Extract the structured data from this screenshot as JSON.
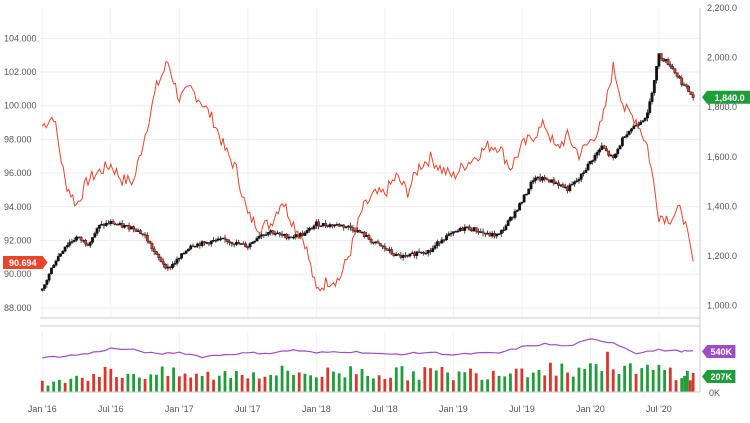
{
  "chart_data": [
    {
      "type": "line",
      "title": "",
      "xlabel": "",
      "x_tick_labels": [
        "Jan '16",
        "Jul '16",
        "Jan '17",
        "Jul '17",
        "Jan '18",
        "Jul '18",
        "Jan '19",
        "Jul '19",
        "Jan '20",
        "Jul '20"
      ],
      "left_axis": {
        "ylabel": "",
        "tick_labels": [
          "88.000",
          "90.000",
          "92.000",
          "94.000",
          "96.000",
          "98.000",
          "100.000",
          "102.000",
          "104.000"
        ],
        "ylim": [
          87.4,
          105.8
        ],
        "last_value_label": "90.694",
        "last_value": 90.694,
        "last_value_color": "#e8452c"
      },
      "right_axis": {
        "ylabel": "",
        "tick_labels": [
          "1,000.0",
          "1,200.0",
          "1,400.0",
          "1,600.0",
          "1,800.0",
          "2,000.0",
          "2,200.0"
        ],
        "ylim": [
          950,
          2200
        ],
        "last_value_label": "1,840.0",
        "last_value": 1840.0,
        "last_value_color": "#1f9d3a"
      },
      "series": [
        {
          "axis": "left",
          "style": "line",
          "color": "#e8452c",
          "x": [
            "2016-01",
            "2016-02",
            "2016-03",
            "2016-04",
            "2016-05",
            "2016-06",
            "2016-07",
            "2016-08",
            "2016-09",
            "2016-10",
            "2016-11",
            "2016-12",
            "2017-01",
            "2017-02",
            "2017-03",
            "2017-04",
            "2017-05",
            "2017-06",
            "2017-07",
            "2017-08",
            "2017-09",
            "2017-10",
            "2017-11",
            "2017-12",
            "2018-01",
            "2018-02",
            "2018-03",
            "2018-04",
            "2018-05",
            "2018-06",
            "2018-07",
            "2018-08",
            "2018-09",
            "2018-10",
            "2018-11",
            "2018-12",
            "2019-01",
            "2019-02",
            "2019-03",
            "2019-04",
            "2019-05",
            "2019-06",
            "2019-07",
            "2019-08",
            "2019-09",
            "2019-10",
            "2019-11",
            "2019-12",
            "2020-01",
            "2020-02",
            "2020-03",
            "2020-04",
            "2020-05",
            "2020-06",
            "2020-07",
            "2020-08",
            "2020-09",
            "2020-10"
          ],
          "values": [
            98.8,
            99.4,
            95.5,
            94.1,
            95.6,
            96.1,
            96.5,
            95.6,
            95.5,
            98.3,
            101.1,
            102.6,
            100.4,
            101.0,
            100.2,
            99.1,
            97.4,
            96.2,
            93.5,
            92.8,
            93.0,
            94.4,
            93.0,
            91.9,
            89.0,
            89.6,
            89.7,
            91.4,
            93.8,
            94.7,
            94.8,
            95.8,
            94.9,
            96.4,
            96.9,
            96.2,
            95.8,
            96.5,
            97.0,
            97.6,
            97.6,
            96.3,
            97.6,
            98.2,
            98.9,
            97.4,
            98.2,
            97.1,
            97.9,
            98.9,
            102.3,
            99.8,
            99.2,
            97.6,
            93.5,
            93.3,
            93.9,
            90.7
          ]
        },
        {
          "axis": "right",
          "style": "candlestick",
          "color_up": "#1f9d3a",
          "color_down": "#d9362b",
          "x": [
            "2016-01",
            "2016-02",
            "2016-03",
            "2016-04",
            "2016-05",
            "2016-06",
            "2016-07",
            "2016-08",
            "2016-09",
            "2016-10",
            "2016-11",
            "2016-12",
            "2017-01",
            "2017-02",
            "2017-03",
            "2017-04",
            "2017-05",
            "2017-06",
            "2017-07",
            "2017-08",
            "2017-09",
            "2017-10",
            "2017-11",
            "2017-12",
            "2018-01",
            "2018-02",
            "2018-03",
            "2018-04",
            "2018-05",
            "2018-06",
            "2018-07",
            "2018-08",
            "2018-09",
            "2018-10",
            "2018-11",
            "2018-12",
            "2019-01",
            "2019-02",
            "2019-03",
            "2019-04",
            "2019-05",
            "2019-06",
            "2019-07",
            "2019-08",
            "2019-09",
            "2019-10",
            "2019-11",
            "2019-12",
            "2020-01",
            "2020-02",
            "2020-03",
            "2020-04",
            "2020-05",
            "2020-06",
            "2020-07",
            "2020-08",
            "2020-09",
            "2020-10"
          ],
          "values": [
            1061,
            1170,
            1240,
            1275,
            1250,
            1320,
            1335,
            1320,
            1315,
            1280,
            1200,
            1150,
            1190,
            1245,
            1250,
            1260,
            1265,
            1250,
            1240,
            1285,
            1300,
            1280,
            1280,
            1290,
            1330,
            1325,
            1325,
            1315,
            1290,
            1255,
            1230,
            1200,
            1195,
            1220,
            1220,
            1270,
            1290,
            1315,
            1305,
            1285,
            1285,
            1350,
            1420,
            1510,
            1510,
            1495,
            1470,
            1510,
            1580,
            1640,
            1590,
            1690,
            1730,
            1770,
            2010,
            1970,
            1900,
            1840
          ]
        },
        {
          "axis": "volume",
          "style": "line",
          "color": "#a24bc8",
          "name": "",
          "last_value_label": "540K",
          "x": [
            "2016-01",
            "2016-03",
            "2016-05",
            "2016-07",
            "2016-09",
            "2016-11",
            "2017-01",
            "2017-03",
            "2017-05",
            "2017-07",
            "2017-09",
            "2017-11",
            "2018-01",
            "2018-03",
            "2018-05",
            "2018-07",
            "2018-09",
            "2018-11",
            "2019-01",
            "2019-03",
            "2019-05",
            "2019-07",
            "2019-09",
            "2019-11",
            "2020-01",
            "2020-03",
            "2020-05",
            "2020-07",
            "2020-09",
            "2020-10"
          ],
          "values": [
            455,
            480,
            510,
            580,
            560,
            505,
            530,
            470,
            500,
            520,
            520,
            560,
            520,
            540,
            530,
            500,
            510,
            530,
            495,
            515,
            520,
            600,
            640,
            610,
            700,
            660,
            520,
            560,
            545,
            540
          ]
        },
        {
          "axis": "volume",
          "style": "bar",
          "name": "",
          "last_value_label": "207K",
          "color_up": "#1f9d3a",
          "color_down": "#d9362b",
          "x": [
            "2016-01",
            "2016-03",
            "2016-05",
            "2016-07",
            "2016-09",
            "2016-11",
            "2017-01",
            "2017-03",
            "2017-05",
            "2017-07",
            "2017-09",
            "2017-11",
            "2018-01",
            "2018-03",
            "2018-05",
            "2018-07",
            "2018-09",
            "2018-11",
            "2019-01",
            "2019-03",
            "2019-05",
            "2019-07",
            "2019-09",
            "2019-11",
            "2020-01",
            "2020-03",
            "2020-05",
            "2020-07",
            "2020-09",
            "2020-10"
          ],
          "values": [
            120,
            200,
            230,
            260,
            240,
            250,
            230,
            210,
            240,
            260,
            250,
            270,
            240,
            260,
            300,
            240,
            250,
            270,
            230,
            260,
            280,
            320,
            340,
            300,
            360,
            400,
            260,
            300,
            250,
            207
          ]
        }
      ],
      "volume_axis": {
        "ylim": [
          0,
          800
        ],
        "tick_labels": [
          "0K"
        ]
      },
      "grid": true,
      "legend": "none"
    }
  ]
}
